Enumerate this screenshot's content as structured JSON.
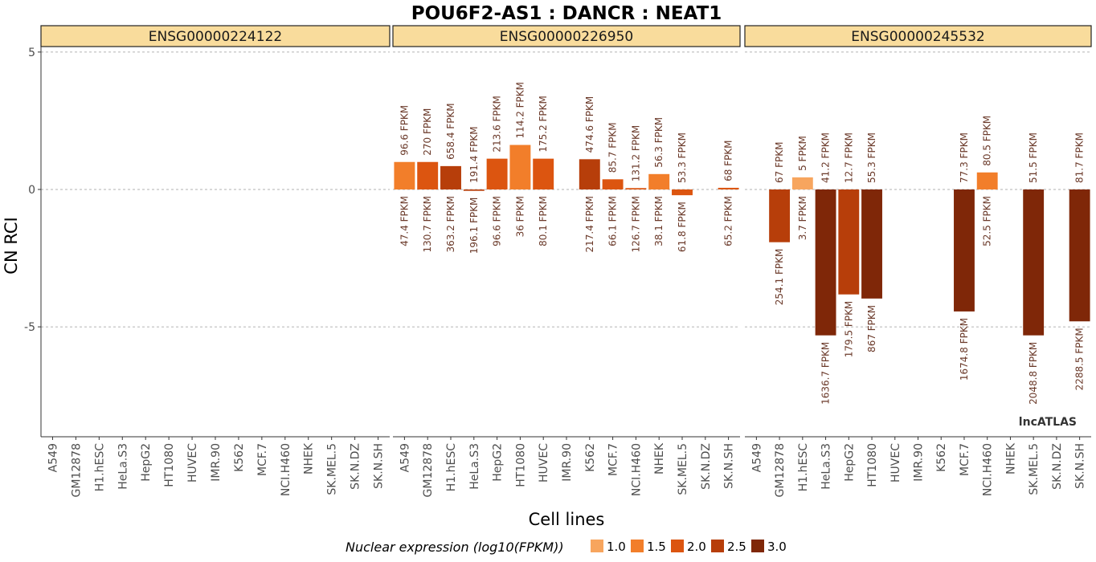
{
  "chart_data": {
    "type": "bar",
    "title": "POU6F2-AS1 : DANCR : NEAT1",
    "xlabel": "Cell lines",
    "ylabel": "CN RCI",
    "ylim": [
      -9.0,
      5.2
    ],
    "yticks": [
      5,
      0,
      -5
    ],
    "ytick_labels": [
      "5",
      "0",
      "-5"
    ],
    "grid": "dashed horizontal at ticks",
    "categories": [
      "A549",
      "GM12878",
      "H1.hESC",
      "HeLa.S3",
      "HepG2",
      "HT1080",
      "HUVEC",
      "IMR.90",
      "K562",
      "MCF.7",
      "NCI.H460",
      "NHEK",
      "SK.MEL.5",
      "SK.N.DZ",
      "SK.N.SH"
    ],
    "legend": {
      "title": "Nuclear expression (log10(FPKM))",
      "position": "bottom",
      "levels": [
        {
          "label": "1.0",
          "color": "#f7a55e"
        },
        {
          "label": "1.5",
          "color": "#f27e2a"
        },
        {
          "label": "2.0",
          "color": "#dc5510"
        },
        {
          "label": "2.5",
          "color": "#b73e0a"
        },
        {
          "label": "3.0",
          "color": "#7f2708"
        }
      ]
    },
    "watermark": "lncATLAS",
    "panels": [
      {
        "name": "ENSG00000224122",
        "bars": []
      },
      {
        "name": "ENSG00000226950",
        "bars": [
          {
            "category": "A549",
            "value": 1.0,
            "log_fpkm": 1.68,
            "top_label": "96.6 FPKM",
            "bottom_label": "47.4 FPKM"
          },
          {
            "category": "GM12878",
            "value": 1.0,
            "log_fpkm": 2.12,
            "top_label": "270 FPKM",
            "bottom_label": "130.7 FPKM"
          },
          {
            "category": "H1.hESC",
            "value": 0.85,
            "log_fpkm": 2.56,
            "top_label": "658.4 FPKM",
            "bottom_label": "363.2 FPKM"
          },
          {
            "category": "HeLa.S3",
            "value": -0.05,
            "log_fpkm": 2.29,
            "top_label": "191.4 FPKM",
            "bottom_label": "196.1 FPKM"
          },
          {
            "category": "HepG2",
            "value": 1.12,
            "log_fpkm": 1.98,
            "top_label": "213.6 FPKM",
            "bottom_label": "96.6 FPKM"
          },
          {
            "category": "HT1080",
            "value": 1.62,
            "log_fpkm": 1.56,
            "top_label": "114.2 FPKM",
            "bottom_label": "36 FPKM"
          },
          {
            "category": "HUVEC",
            "value": 1.12,
            "log_fpkm": 1.9,
            "top_label": "175.2 FPKM",
            "bottom_label": "80.1 FPKM"
          },
          {
            "category": "K562",
            "value": 1.1,
            "log_fpkm": 2.34,
            "top_label": "474.6 FPKM",
            "bottom_label": "217.4 FPKM"
          },
          {
            "category": "MCF.7",
            "value": 0.37,
            "log_fpkm": 1.82,
            "top_label": "85.7 FPKM",
            "bottom_label": "66.1 FPKM"
          },
          {
            "category": "NCI.H460",
            "value": 0.05,
            "log_fpkm": 2.1,
            "top_label": "131.2 FPKM",
            "bottom_label": "126.7 FPKM"
          },
          {
            "category": "NHEK",
            "value": 0.56,
            "log_fpkm": 1.58,
            "top_label": "56.3 FPKM",
            "bottom_label": "38.1 FPKM"
          },
          {
            "category": "SK.MEL.5",
            "value": -0.21,
            "log_fpkm": 1.79,
            "top_label": "53.3 FPKM",
            "bottom_label": "61.8 FPKM"
          },
          {
            "category": "SK.N.SH",
            "value": 0.06,
            "log_fpkm": 1.81,
            "top_label": "68 FPKM",
            "bottom_label": "65.2 FPKM"
          }
        ]
      },
      {
        "name": "ENSG00000245532",
        "bars": [
          {
            "category": "GM12878",
            "value": -1.92,
            "log_fpkm": 2.4,
            "top_label": "67 FPKM",
            "bottom_label": "254.1 FPKM"
          },
          {
            "category": "H1.hESC",
            "value": 0.44,
            "log_fpkm": 0.57,
            "top_label": "5 FPKM",
            "bottom_label": "3.7 FPKM"
          },
          {
            "category": "HeLa.S3",
            "value": -5.31,
            "log_fpkm": 3.21,
            "top_label": "41.2 FPKM",
            "bottom_label": "1636.7 FPKM"
          },
          {
            "category": "HepG2",
            "value": -3.82,
            "log_fpkm": 2.25,
            "top_label": "12.7 FPKM",
            "bottom_label": "179.5 FPKM"
          },
          {
            "category": "HT1080",
            "value": -3.97,
            "log_fpkm": 2.94,
            "top_label": "55.3 FPKM",
            "bottom_label": "867 FPKM"
          },
          {
            "category": "MCF.7",
            "value": -4.44,
            "log_fpkm": 3.22,
            "top_label": "77.3 FPKM",
            "bottom_label": "1674.8 FPKM"
          },
          {
            "category": "NCI.H460",
            "value": 0.62,
            "log_fpkm": 1.72,
            "top_label": "80.5 FPKM",
            "bottom_label": "52.5 FPKM"
          },
          {
            "category": "SK.MEL.5",
            "value": -5.31,
            "log_fpkm": 3.31,
            "top_label": "51.5 FPKM",
            "bottom_label": "2048.8 FPKM"
          },
          {
            "category": "SK.N.SH",
            "value": -4.8,
            "log_fpkm": 3.36,
            "top_label": "81.7 FPKM",
            "bottom_label": "2288.5 FPKM"
          }
        ]
      }
    ]
  }
}
